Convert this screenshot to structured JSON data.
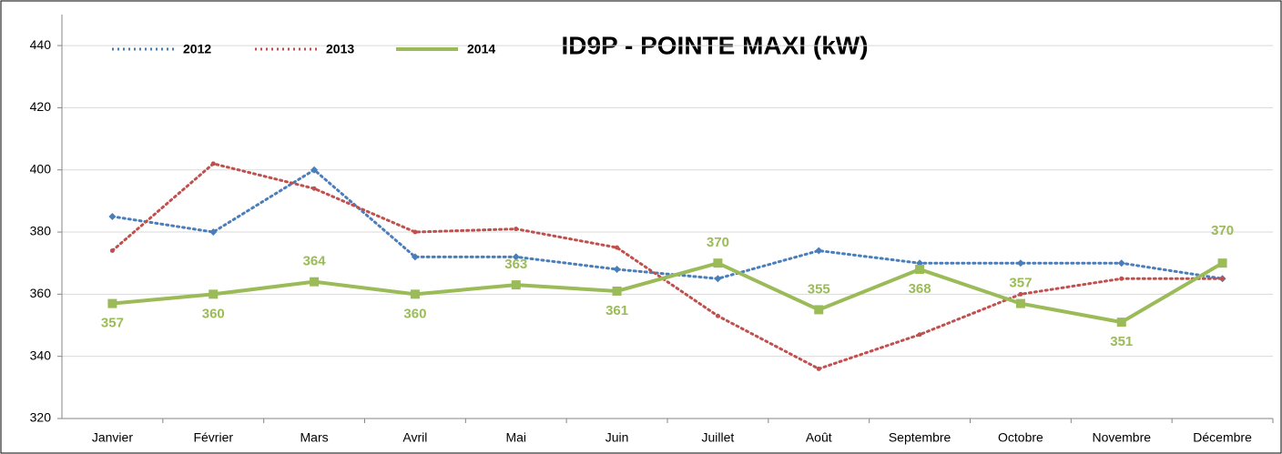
{
  "chart_data": {
    "type": "line",
    "title": "ID9P - POINTE MAXI (kW)",
    "categories": [
      "Janvier",
      "Février",
      "Mars",
      "Avril",
      "Mai",
      "Juin",
      "Juillet",
      "Août",
      "Septembre",
      "Octobre",
      "Novembre",
      "Décembre"
    ],
    "series": [
      {
        "name": "2012",
        "color": "#4a7ebb",
        "dash": true,
        "values": [
          385,
          380,
          400,
          372,
          372,
          368,
          365,
          374,
          370,
          370,
          370,
          365
        ]
      },
      {
        "name": "2013",
        "color": "#c0504d",
        "dash": true,
        "values": [
          374,
          402,
          394,
          380,
          381,
          375,
          353,
          336,
          347,
          360,
          365,
          365
        ]
      },
      {
        "name": "2014",
        "color": "#9bbb59",
        "dash": false,
        "data_labels": true,
        "values": [
          357,
          360,
          364,
          360,
          363,
          361,
          370,
          355,
          368,
          357,
          351,
          370
        ]
      }
    ],
    "ylim": [
      320,
      445
    ],
    "yticks": [
      320,
      340,
      360,
      380,
      400,
      420,
      440
    ],
    "grid": true,
    "legend": "top-left"
  }
}
